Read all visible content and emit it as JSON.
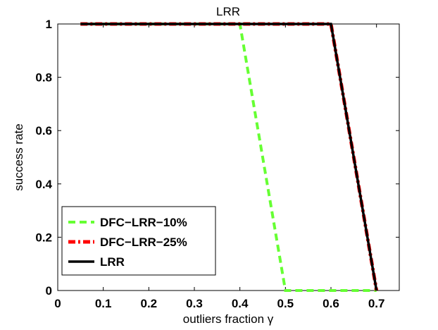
{
  "chart_data": {
    "type": "line",
    "title": "LRR",
    "xlabel": "outliers fraction γ",
    "ylabel": "success rate",
    "xlim": [
      0,
      0.75
    ],
    "ylim": [
      0,
      1
    ],
    "xticks": [
      0,
      0.1,
      0.2,
      0.3,
      0.4,
      0.5,
      0.6,
      0.7
    ],
    "xtick_labels": [
      "0",
      "0.1",
      "0.2",
      "0.3",
      "0.4",
      "0.5",
      "0.6",
      "0.7"
    ],
    "yticks": [
      0,
      0.2,
      0.4,
      0.6,
      0.8,
      1
    ],
    "ytick_labels": [
      "0",
      "0.2",
      "0.4",
      "0.6",
      "0.8",
      "1"
    ],
    "grid": false,
    "legend_position": "bottom-left",
    "series": [
      {
        "name": "DFC−LRR−10%",
        "color": "#66ff33",
        "style": "dashed",
        "x": [
          0.05,
          0.4,
          0.5,
          0.7
        ],
        "y": [
          1,
          1,
          0,
          0
        ]
      },
      {
        "name": "DFC−LRR−25%",
        "color": "#ff0000",
        "style": "dashdot",
        "x": [
          0.05,
          0.6,
          0.7
        ],
        "y": [
          1,
          1,
          0
        ]
      },
      {
        "name": "LRR",
        "color": "#000000",
        "style": "solid",
        "x": [
          0.05,
          0.6,
          0.7
        ],
        "y": [
          1,
          1,
          0
        ]
      }
    ]
  }
}
